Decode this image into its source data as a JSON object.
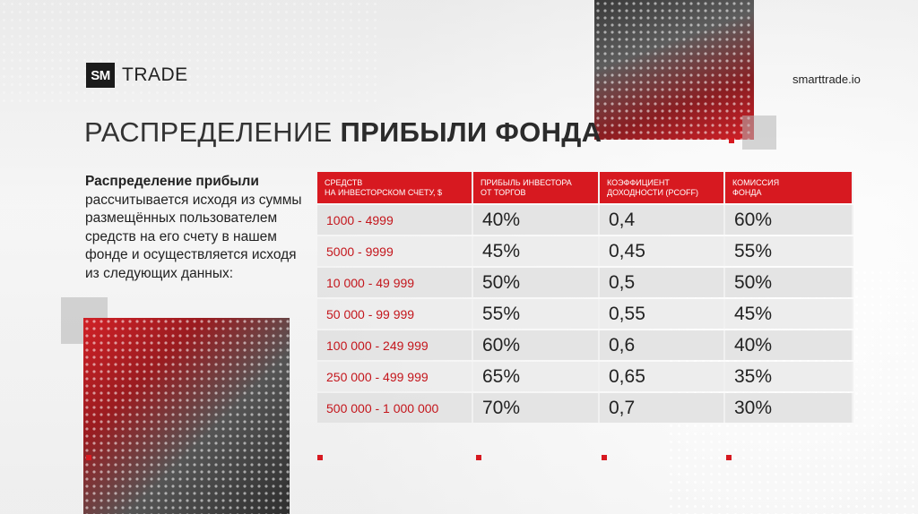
{
  "header": {
    "logo_mark": "SM",
    "logo_text": "TRADE",
    "site": "smarttrade.io"
  },
  "title": {
    "light": "РАСПРЕДЕЛЕНИЕ",
    "bold": "ПРИБЫЛИ ФОНДА"
  },
  "description": {
    "bold": "Распределение прибыли",
    "rest": " рассчитывается исходя из суммы размещённых пользователем средств на его счету в нашем фонде и осуществляется исходя из следующих данных:"
  },
  "table": {
    "headers": [
      [
        "СРЕДСТВ",
        "НА ИНВЕСТОРСКОМ СЧЕТУ, $"
      ],
      [
        "ПРИБЫЛЬ ИНВЕСТОРА",
        "ОТ ТОРГОВ"
      ],
      [
        "КОЭФФИЦИЕНТ",
        "ДОХОДНОСТИ (Pcoff)"
      ],
      [
        "КОМИССИЯ",
        "ФОНДА"
      ]
    ],
    "rows": [
      [
        "1000 - 4999",
        "40%",
        "0,4",
        "60%"
      ],
      [
        "5000 - 9999",
        "45%",
        "0,45",
        "55%"
      ],
      [
        "10 000 - 49 999",
        "50%",
        "0,5",
        "50%"
      ],
      [
        "50 000 - 99 999",
        "55%",
        "0,55",
        "45%"
      ],
      [
        "100 000 - 249 999",
        "60%",
        "0,6",
        "40%"
      ],
      [
        "250 000 - 499 999",
        "65%",
        "0,65",
        "35%"
      ],
      [
        "500 000 - 1 000 000",
        "70%",
        "0,7",
        "30%"
      ]
    ]
  },
  "colors": {
    "accent": "#d71920",
    "dark": "#1b1b1b"
  }
}
